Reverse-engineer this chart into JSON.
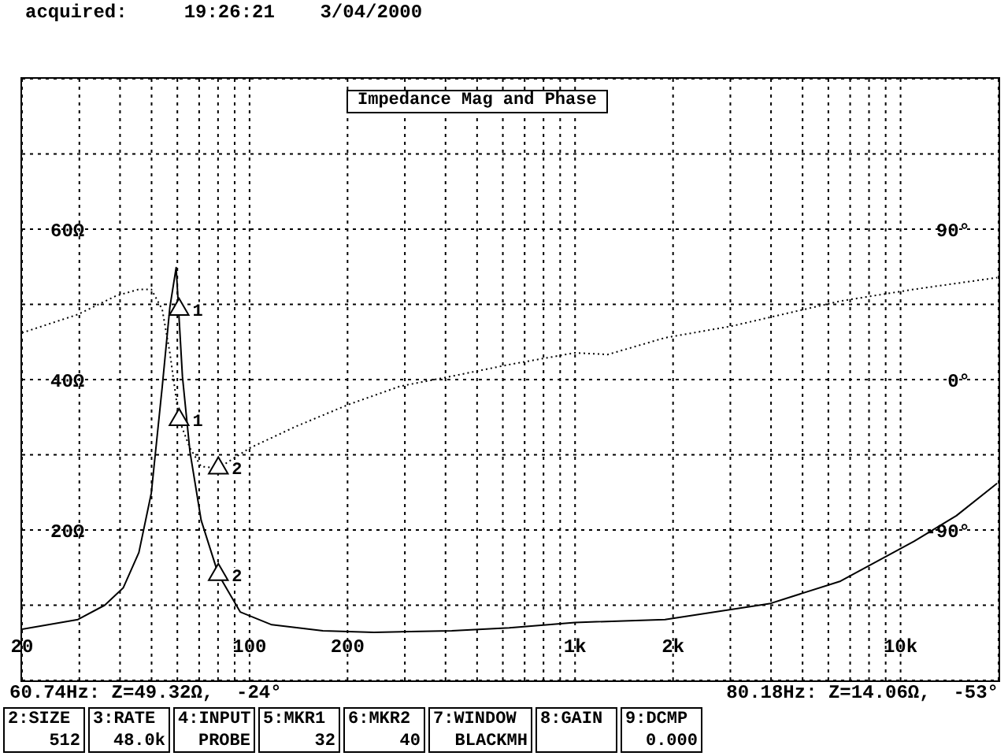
{
  "chart_data": {
    "type": "line",
    "title": "Impedance Mag and Phase",
    "xlim": [
      20,
      20000
    ],
    "log": "x",
    "xticks": [
      {
        "value": 20,
        "label": "20"
      },
      {
        "value": 30,
        "label": null
      },
      {
        "value": 40,
        "label": null
      },
      {
        "value": 50,
        "label": null
      },
      {
        "value": 60,
        "label": null
      },
      {
        "value": 70,
        "label": null
      },
      {
        "value": 80,
        "label": null
      },
      {
        "value": 90,
        "label": null
      },
      {
        "value": 100,
        "label": "100"
      },
      {
        "value": 200,
        "label": "200"
      },
      {
        "value": 300,
        "label": null
      },
      {
        "value": 400,
        "label": null
      },
      {
        "value": 500,
        "label": null
      },
      {
        "value": 600,
        "label": null
      },
      {
        "value": 700,
        "label": null
      },
      {
        "value": 800,
        "label": null
      },
      {
        "value": 900,
        "label": null
      },
      {
        "value": 1000,
        "label": "1k"
      },
      {
        "value": 2000,
        "label": "2k"
      },
      {
        "value": 3000,
        "label": null
      },
      {
        "value": 4000,
        "label": null
      },
      {
        "value": 5000,
        "label": null
      },
      {
        "value": 6000,
        "label": null
      },
      {
        "value": 7000,
        "label": null
      },
      {
        "value": 8000,
        "label": null
      },
      {
        "value": 9000,
        "label": null
      },
      {
        "value": 10000,
        "label": "10k"
      }
    ],
    "ylim": [
      0,
      80
    ],
    "yticks": [
      {
        "value": 10,
        "label": null
      },
      {
        "value": 20,
        "label": "20Ω"
      },
      {
        "value": 30,
        "label": null
      },
      {
        "value": 40,
        "label": "40Ω"
      },
      {
        "value": 50,
        "label": null
      },
      {
        "value": 60,
        "label": "60Ω"
      },
      {
        "value": 70,
        "label": null
      }
    ],
    "y2lim": [
      -180,
      180
    ],
    "y2ticks": [
      {
        "value": -90,
        "label": "-90°"
      },
      {
        "value": 0,
        "label": "0°"
      },
      {
        "value": 90,
        "label": "90°"
      }
    ],
    "grid": true,
    "legend": false,
    "marker": "none",
    "series": [
      {
        "color": "#000000",
        "line_style": "solid",
        "x": [
          20,
          29.7,
          35.9,
          40.9,
          45.7,
          49.9,
          53.9,
          56.9,
          59.5,
          62.2,
          65.6,
          71,
          80.18,
          93.6,
          117,
          168,
          241,
          418,
          628,
          1000,
          1890,
          3960,
          6540,
          11000,
          14840,
          19800
        ],
        "values": [
          6.8,
          8.1,
          10,
          12.3,
          17,
          24.9,
          39,
          49.6,
          54.9,
          40.4,
          30.4,
          21.3,
          14.1,
          9.1,
          7.4,
          6.6,
          6.4,
          6.6,
          7,
          7.7,
          8.1,
          10.2,
          13.2,
          18.5,
          21.9,
          26.2
        ]
      },
      {
        "axis": "y2",
        "color": "#000000",
        "line_style": "dotted",
        "x": [
          20,
          29.7,
          38.8,
          45.7,
          49.9,
          53.9,
          56.9,
          60.74,
          65.6,
          71,
          80.18,
          100,
          139,
          201,
          290,
          418,
          628,
          1000,
          1260,
          1890,
          3030,
          6540,
          11000,
          19800
        ],
        "values": [
          28,
          39,
          50,
          54,
          54,
          42,
          16,
          -24,
          -41,
          -52,
          -53,
          -41,
          -28,
          -15,
          -4,
          2,
          9,
          16,
          15,
          25,
          32,
          47,
          54,
          61
        ]
      },
      {
        "type": "scatter",
        "marker": "triangle",
        "color": "#000000",
        "x": [
          60.74,
          80.18
        ],
        "values": [
          49.32,
          14.06
        ]
      },
      {
        "type": "scatter",
        "axis": "y2",
        "marker": "triangle",
        "color": "#000000",
        "x": [
          60.74,
          80.18
        ],
        "values": [
          -24,
          -53
        ]
      }
    ],
    "annotations": [
      "acquired:     19:26:21    3/04/2000",
      "60.74Hz: Z=49.32Ω,  -24°",
      "80.18Hz: Z=14.06Ω,  -53°",
      "2:SIZE\n512",
      "3:RATE\n48.0k",
      "4:INPUT\nPROBE",
      "5:MKR1\n32",
      "6:MKR2\n40",
      "7:WINDOW\nBLACKMH",
      "8:GAIN\n",
      "9:DCMP\n0.000",
      "1",
      "2",
      "1",
      "2"
    ]
  }
}
